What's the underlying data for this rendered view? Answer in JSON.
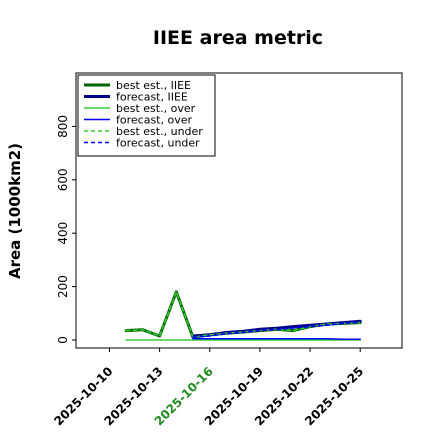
{
  "chart_data": {
    "type": "line",
    "title": "IIEE area metric",
    "xlabel": "",
    "ylabel": "Area (1000km2)",
    "x_tick_labels": [
      "2025-10-10",
      "2025-10-13",
      "2025-10-16",
      "2025-10-19",
      "2025-10-22",
      "2025-10-25"
    ],
    "x_tick_days": [
      1,
      4,
      7,
      10,
      13,
      16
    ],
    "highlight_tick": "2025-10-16",
    "highlight_color": "#228b22",
    "y_ticks": [
      0,
      200,
      400,
      600,
      800
    ],
    "ylim": [
      -30,
      1000
    ],
    "xlim": [
      -1,
      18.5
    ],
    "legend_position": "top-left",
    "grid": false,
    "series": [
      {
        "name": "best est., IIEE",
        "color": "#006400",
        "style": "solid",
        "width": 3,
        "x": [
          2,
          3,
          4,
          5,
          6,
          7,
          8,
          9,
          10,
          11,
          12,
          13,
          14,
          15,
          16
        ],
        "values": [
          35,
          38,
          15,
          180,
          10,
          20,
          25,
          30,
          35,
          40,
          35,
          50,
          60,
          62,
          65
        ]
      },
      {
        "name": "forecast, IIEE",
        "color": "#00008b",
        "style": "solid",
        "width": 3,
        "x": [
          6,
          7,
          8,
          9,
          10,
          11,
          12,
          13,
          14,
          15,
          16
        ],
        "values": [
          15,
          20,
          28,
          33,
          40,
          44,
          50,
          55,
          60,
          65,
          70
        ]
      },
      {
        "name": "best est., over",
        "color": "#32cd32",
        "style": "solid",
        "width": 1.5,
        "x": [
          2,
          3,
          4,
          5,
          6,
          7,
          8,
          9,
          10,
          11,
          12,
          13,
          14,
          15,
          16
        ],
        "values": [
          0,
          0,
          0,
          0,
          0,
          0,
          0,
          0,
          0,
          0,
          0,
          0,
          0,
          0,
          0
        ]
      },
      {
        "name": "forecast, over",
        "color": "#0000ff",
        "style": "solid",
        "width": 1.5,
        "x": [
          6,
          7,
          8,
          9,
          10,
          11,
          12,
          13,
          14,
          15,
          16
        ],
        "values": [
          5,
          5,
          5,
          5,
          5,
          5,
          5,
          5,
          5,
          3,
          3
        ]
      },
      {
        "name": "best est., under",
        "color": "#32cd32",
        "style": "dashed",
        "width": 1.5,
        "x": [
          2,
          3,
          4,
          5,
          6,
          7,
          8,
          9,
          10,
          11,
          12,
          13,
          14,
          15,
          16
        ],
        "values": [
          35,
          38,
          15,
          180,
          10,
          20,
          25,
          30,
          35,
          40,
          35,
          50,
          60,
          62,
          65
        ]
      },
      {
        "name": "forecast, under",
        "color": "#0000ff",
        "style": "dashed",
        "width": 1.5,
        "x": [
          6,
          7,
          8,
          9,
          10,
          11,
          12,
          13,
          14,
          15,
          16
        ],
        "values": [
          10,
          15,
          23,
          28,
          35,
          39,
          45,
          50,
          55,
          62,
          67
        ]
      }
    ]
  }
}
